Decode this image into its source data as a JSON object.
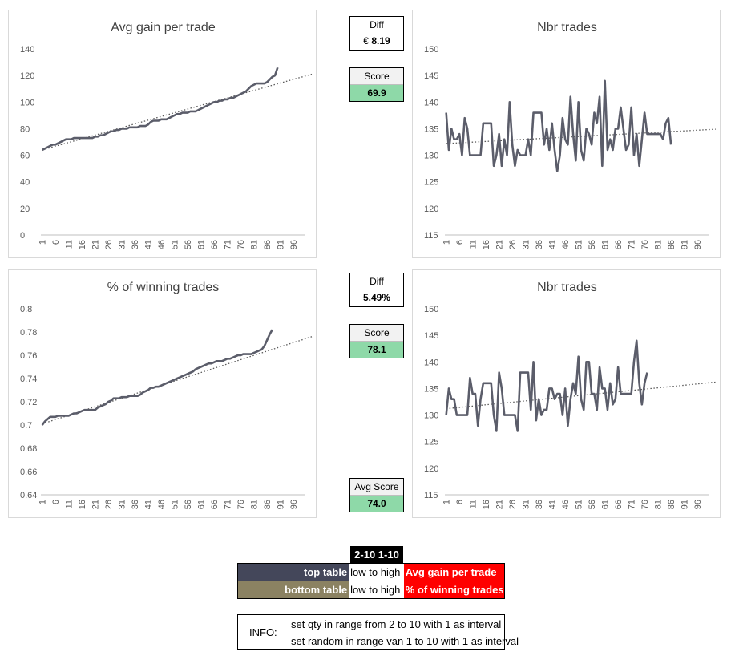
{
  "charts": [
    {
      "id": "tl",
      "chart_data": {
        "type": "line",
        "title": "Avg gain per trade",
        "xlabel": "",
        "ylabel": "",
        "ylim": [
          0,
          140
        ],
        "yticks": [
          "0",
          "20",
          "40",
          "60",
          "80",
          "100",
          "120",
          "140"
        ],
        "xticks": [
          "1",
          "6",
          "11",
          "16",
          "21",
          "26",
          "31",
          "36",
          "41",
          "46",
          "51",
          "56",
          "61",
          "66",
          "71",
          "76",
          "81",
          "86",
          "91",
          "96"
        ],
        "x_count": 100,
        "trendline": {
          "style": "dotted",
          "start": 64,
          "end": 121
        },
        "series": [
          {
            "values": [
              64,
              65,
              66,
              67,
              68,
              68,
              69,
              70,
              71,
              72,
              72,
              72,
              73,
              73,
              73,
              73,
              73,
              73,
              73,
              73,
              74,
              74,
              75,
              75,
              76,
              77,
              78,
              78,
              79,
              79,
              80,
              80,
              80,
              81,
              81,
              81,
              81,
              82,
              82,
              82,
              83,
              85,
              86,
              86,
              86,
              87,
              87,
              87,
              88,
              89,
              90,
              91,
              91,
              92,
              92,
              92,
              93,
              93,
              93,
              94,
              95,
              96,
              97,
              98,
              99,
              100,
              100,
              101,
              101,
              102,
              102,
              103,
              103,
              104,
              105,
              106,
              107,
              108,
              110,
              112,
              113,
              114,
              114,
              114,
              114,
              115,
              117,
              119,
              120,
              126
            ]
          }
        ]
      }
    },
    {
      "id": "tr",
      "chart_data": {
        "type": "line",
        "title": "Nbr trades",
        "xlabel": "",
        "ylabel": "",
        "ylim": [
          115,
          150
        ],
        "yticks": [
          "115",
          "120",
          "125",
          "130",
          "135",
          "140",
          "145",
          "150"
        ],
        "xticks": [
          "1",
          "6",
          "11",
          "16",
          "21",
          "26",
          "31",
          "36",
          "41",
          "46",
          "51",
          "56",
          "61",
          "66",
          "71",
          "76",
          "81",
          "86",
          "91",
          "96"
        ],
        "x_count": 100,
        "trendline": {
          "style": "dotted",
          "start": 132.2,
          "end": 134.9
        },
        "series": [
          {
            "values": [
              138,
              131,
              135,
              133,
              133,
              134,
              130,
              137,
              135,
              130,
              130,
              130,
              130,
              130,
              136,
              136,
              136,
              136,
              128,
              130,
              134,
              128,
              133,
              130,
              140,
              132,
              128,
              131,
              130,
              130,
              130,
              133,
              130,
              138,
              138,
              138,
              138,
              132,
              135,
              131,
              136,
              131,
              127,
              130,
              137,
              133,
              132,
              141,
              134,
              129,
              140,
              131,
              129,
              135,
              134,
              132,
              138,
              136,
              141,
              128,
              144,
              131,
              133,
              131,
              135,
              135,
              139,
              135,
              131,
              132,
              139,
              130,
              134,
              128,
              133,
              138,
              134,
              134,
              134,
              134,
              134,
              134,
              133,
              136,
              137,
              132
            ]
          }
        ]
      }
    },
    {
      "id": "bl",
      "chart_data": {
        "type": "line",
        "title": "% of winning trades",
        "xlabel": "",
        "ylabel": "",
        "ylim": [
          0.64,
          0.8
        ],
        "yticks": [
          "0.64",
          "0.66",
          "0.68",
          "0.7",
          "0.72",
          "0.74",
          "0.76",
          "0.78",
          "0.8"
        ],
        "xticks": [
          "1",
          "6",
          "11",
          "16",
          "21",
          "26",
          "31",
          "36",
          "41",
          "46",
          "51",
          "56",
          "61",
          "66",
          "71",
          "76",
          "81",
          "86",
          "91",
          "96"
        ],
        "x_count": 100,
        "trendline": {
          "style": "dotted",
          "start": 0.701,
          "end": 0.776
        },
        "series": [
          {
            "values": [
              0.7,
              0.703,
              0.705,
              0.707,
              0.707,
              0.707,
              0.708,
              0.708,
              0.708,
              0.708,
              0.708,
              0.709,
              0.71,
              0.71,
              0.711,
              0.712,
              0.713,
              0.713,
              0.713,
              0.713,
              0.713,
              0.715,
              0.716,
              0.717,
              0.718,
              0.72,
              0.721,
              0.723,
              0.723,
              0.723,
              0.724,
              0.724,
              0.724,
              0.725,
              0.725,
              0.725,
              0.725,
              0.726,
              0.728,
              0.729,
              0.73,
              0.732,
              0.732,
              0.733,
              0.733,
              0.734,
              0.735,
              0.736,
              0.737,
              0.738,
              0.739,
              0.74,
              0.741,
              0.742,
              0.743,
              0.744,
              0.745,
              0.746,
              0.748,
              0.749,
              0.75,
              0.751,
              0.752,
              0.753,
              0.753,
              0.754,
              0.755,
              0.755,
              0.755,
              0.756,
              0.757,
              0.757,
              0.758,
              0.759,
              0.76,
              0.76,
              0.761,
              0.761,
              0.761,
              0.761,
              0.762,
              0.763,
              0.764,
              0.765,
              0.768,
              0.773,
              0.778,
              0.782
            ]
          }
        ]
      }
    },
    {
      "id": "br",
      "chart_data": {
        "type": "line",
        "title": "Nbr trades",
        "xlabel": "",
        "ylabel": "",
        "ylim": [
          115,
          150
        ],
        "yticks": [
          "115",
          "120",
          "125",
          "130",
          "135",
          "140",
          "145",
          "150"
        ],
        "xticks": [
          "1",
          "6",
          "11",
          "16",
          "21",
          "26",
          "31",
          "36",
          "41",
          "46",
          "51",
          "56",
          "61",
          "66",
          "71",
          "76",
          "81",
          "86",
          "91",
          "96"
        ],
        "x_count": 100,
        "trendline": {
          "style": "dotted",
          "start": 131.2,
          "end": 136.2
        },
        "series": [
          {
            "values": [
              130,
              135,
              133,
              133,
              130,
              130,
              130,
              130,
              130,
              137,
              134,
              134,
              128,
              133,
              136,
              136,
              136,
              136,
              130,
              127,
              138,
              135,
              130,
              130,
              130,
              130,
              130,
              127,
              138,
              138,
              138,
              138,
              131,
              140,
              129,
              133,
              130,
              131,
              131,
              135,
              135,
              133,
              134,
              134,
              130,
              135,
              128,
              133,
              136,
              134,
              141,
              133,
              131,
              140,
              140,
              134,
              134,
              131,
              139,
              135,
              135,
              131,
              136,
              132,
              133,
              139,
              134,
              134,
              134,
              134,
              134,
              140,
              144,
              136,
              132,
              136,
              138
            ]
          }
        ]
      }
    }
  ],
  "panels": {
    "top_diff_label": "Diff",
    "top_diff_value": "€ 8.19",
    "top_score_label": "Score",
    "top_score_value": "69.9",
    "bottom_diff_label": "Diff",
    "bottom_diff_value": "5.49%",
    "bottom_score_label": "Score",
    "bottom_score_value": "78.1",
    "avg_score_label": "Avg Score",
    "avg_score_value": "74.0"
  },
  "legend": {
    "header": "2-10 1-10",
    "rows": [
      {
        "key": "top table",
        "dir": "low to high",
        "metric": "Avg gain per trade",
        "key_color": "#44475a"
      },
      {
        "key": "bottom table",
        "dir": "low to high",
        "metric": "% of winning trades",
        "key_color": "#8b8262"
      }
    ]
  },
  "info": {
    "label": "INFO:",
    "line1": "set qty in range from 2 to 10 with 1 as interval",
    "line2": "set random in range van 1 to 10 with 1 as interval"
  },
  "colors": {
    "series_line": "#5b5d6a",
    "trend_line": "#595959",
    "score_fill": "#8ed9a8",
    "metric_fill": "#ff0000"
  }
}
